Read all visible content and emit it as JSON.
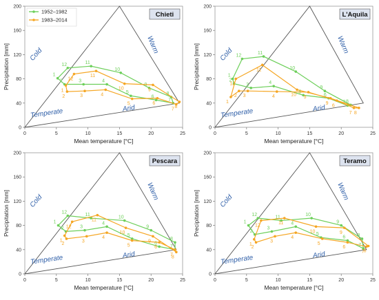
{
  "colors": {
    "series_1952": "#6dcf5a",
    "series_1983": "#f5a623",
    "triangle": "#555555",
    "zone_text": "#2f5fa8",
    "station_box_bg": "#dde3ef"
  },
  "zones": {
    "cold": "Cold",
    "warm": "Warm",
    "temperate": "Temperate",
    "arid": "Arid"
  },
  "axes": {
    "xlabel": "Mean temperature [°C]",
    "ylabel": "Precipitation [mm]",
    "xlim": [
      0,
      25
    ],
    "ylim": [
      0,
      200
    ],
    "xticks": [
      0,
      5,
      10,
      15,
      20,
      25
    ],
    "yticks": [
      0,
      40,
      80,
      120,
      160,
      200
    ]
  },
  "legend": {
    "placement": "top-left",
    "entries": [
      "1952–1982",
      "1983–2014"
    ]
  },
  "chart_data": [
    {
      "type": "line",
      "station": "Chieti",
      "triangle": [
        [
          0,
          0
        ],
        [
          15,
          200
        ],
        [
          24.5,
          40
        ]
      ],
      "series": [
        {
          "name": "1952–1982",
          "months": [
            1,
            2,
            3,
            4,
            5,
            6,
            7,
            8,
            9,
            10,
            11,
            12
          ],
          "x": [
            5.2,
            6.3,
            9.3,
            13.0,
            16.8,
            20.8,
            23.5,
            23.2,
            19.7,
            15.2,
            10.5,
            6.8
          ],
          "y": [
            81,
            71,
            71,
            71,
            52,
            45,
            40,
            50,
            65,
            90,
            101,
            98
          ]
        },
        {
          "name": "1983–2014",
          "months": [
            1,
            2,
            3,
            4,
            5,
            6,
            7,
            8,
            9,
            10,
            11,
            12
          ],
          "x": [
            6.5,
            6.7,
            9.5,
            12.8,
            17.0,
            21.0,
            24.0,
            24.5,
            20.3,
            15.8,
            11.3,
            7.8
          ],
          "y": [
            69,
            59,
            60,
            62,
            47,
            48,
            38,
            42,
            70,
            72,
            93,
            88
          ]
        }
      ]
    },
    {
      "type": "line",
      "station": "L'Aquila",
      "triangle": [
        [
          0,
          0
        ],
        [
          15,
          200
        ],
        [
          23.5,
          40
        ]
      ],
      "series": [
        {
          "name": "1952–1982",
          "months": [
            1,
            2,
            3,
            4,
            5,
            6,
            7,
            8,
            9,
            10,
            11,
            12
          ],
          "x": [
            2.8,
            3.0,
            5.7,
            9.3,
            14.0,
            18.0,
            21.0,
            21.5,
            17.4,
            12.8,
            7.7,
            4.3
          ],
          "y": [
            80,
            72,
            65,
            68,
            53,
            48,
            36,
            37,
            60,
            92,
            117,
            113
          ]
        },
        {
          "name": "1983–2014",
          "months": [
            1,
            2,
            3,
            4,
            5,
            6,
            7,
            8,
            9,
            10,
            11,
            12
          ],
          "x": [
            2.5,
            3.8,
            5.2,
            9.8,
            14.8,
            19.3,
            22.0,
            22.8,
            18.3,
            13.0,
            7.5,
            3.3
          ],
          "y": [
            50,
            60,
            60,
            59,
            58,
            44,
            32,
            32,
            48,
            62,
            103,
            80
          ]
        }
      ]
    },
    {
      "type": "line",
      "station": "Pescara",
      "triangle": [
        [
          0,
          0
        ],
        [
          15,
          200
        ],
        [
          24,
          40
        ]
      ],
      "series": [
        {
          "name": "1952–1982",
          "months": [
            1,
            2,
            3,
            4,
            5,
            6,
            7,
            8,
            9,
            10,
            11,
            12
          ],
          "x": [
            5.3,
            6.5,
            9.5,
            13.0,
            17.0,
            21.3,
            23.8,
            23.8,
            20.0,
            15.8,
            10.5,
            6.8
          ],
          "y": [
            80,
            70,
            72,
            78,
            58,
            45,
            40,
            52,
            72,
            88,
            92,
            96
          ]
        },
        {
          "name": "1983–2014",
          "months": [
            1,
            2,
            3,
            4,
            5,
            6,
            7,
            8,
            9,
            10,
            11,
            12
          ],
          "x": [
            6.3,
            6.6,
            9.8,
            13.0,
            17.0,
            21.3,
            23.8,
            24.0,
            20.3,
            16.0,
            11.5,
            7.5
          ],
          "y": [
            63,
            58,
            62,
            68,
            55,
            52,
            40,
            36,
            62,
            76,
            97,
            86
          ]
        }
      ]
    },
    {
      "type": "line",
      "station": "Teramo",
      "triangle": [
        [
          0,
          0
        ],
        [
          15,
          200
        ],
        [
          24,
          40
        ]
      ],
      "series": [
        {
          "name": "1952–1982",
          "months": [
            1,
            2,
            3,
            4,
            5,
            6,
            7,
            8,
            9,
            10,
            11,
            12
          ],
          "x": [
            5.3,
            6.3,
            9.0,
            12.8,
            16.8,
            21.0,
            23.5,
            23.3,
            20.0,
            15.3,
            10.5,
            6.8
          ],
          "y": [
            80,
            65,
            70,
            78,
            60,
            55,
            42,
            58,
            80,
            92,
            88,
            92
          ]
        },
        {
          "name": "1983–2014",
          "months": [
            1,
            2,
            3,
            4,
            5,
            6,
            7,
            8,
            9,
            10,
            11,
            12
          ],
          "x": [
            6.2,
            6.5,
            9.5,
            12.8,
            17.0,
            21.0,
            24.0,
            24.3,
            20.5,
            16.0,
            11.0,
            7.3
          ],
          "y": [
            57,
            52,
            62,
            68,
            58,
            52,
            45,
            46,
            76,
            78,
            92,
            88
          ]
        }
      ]
    }
  ]
}
